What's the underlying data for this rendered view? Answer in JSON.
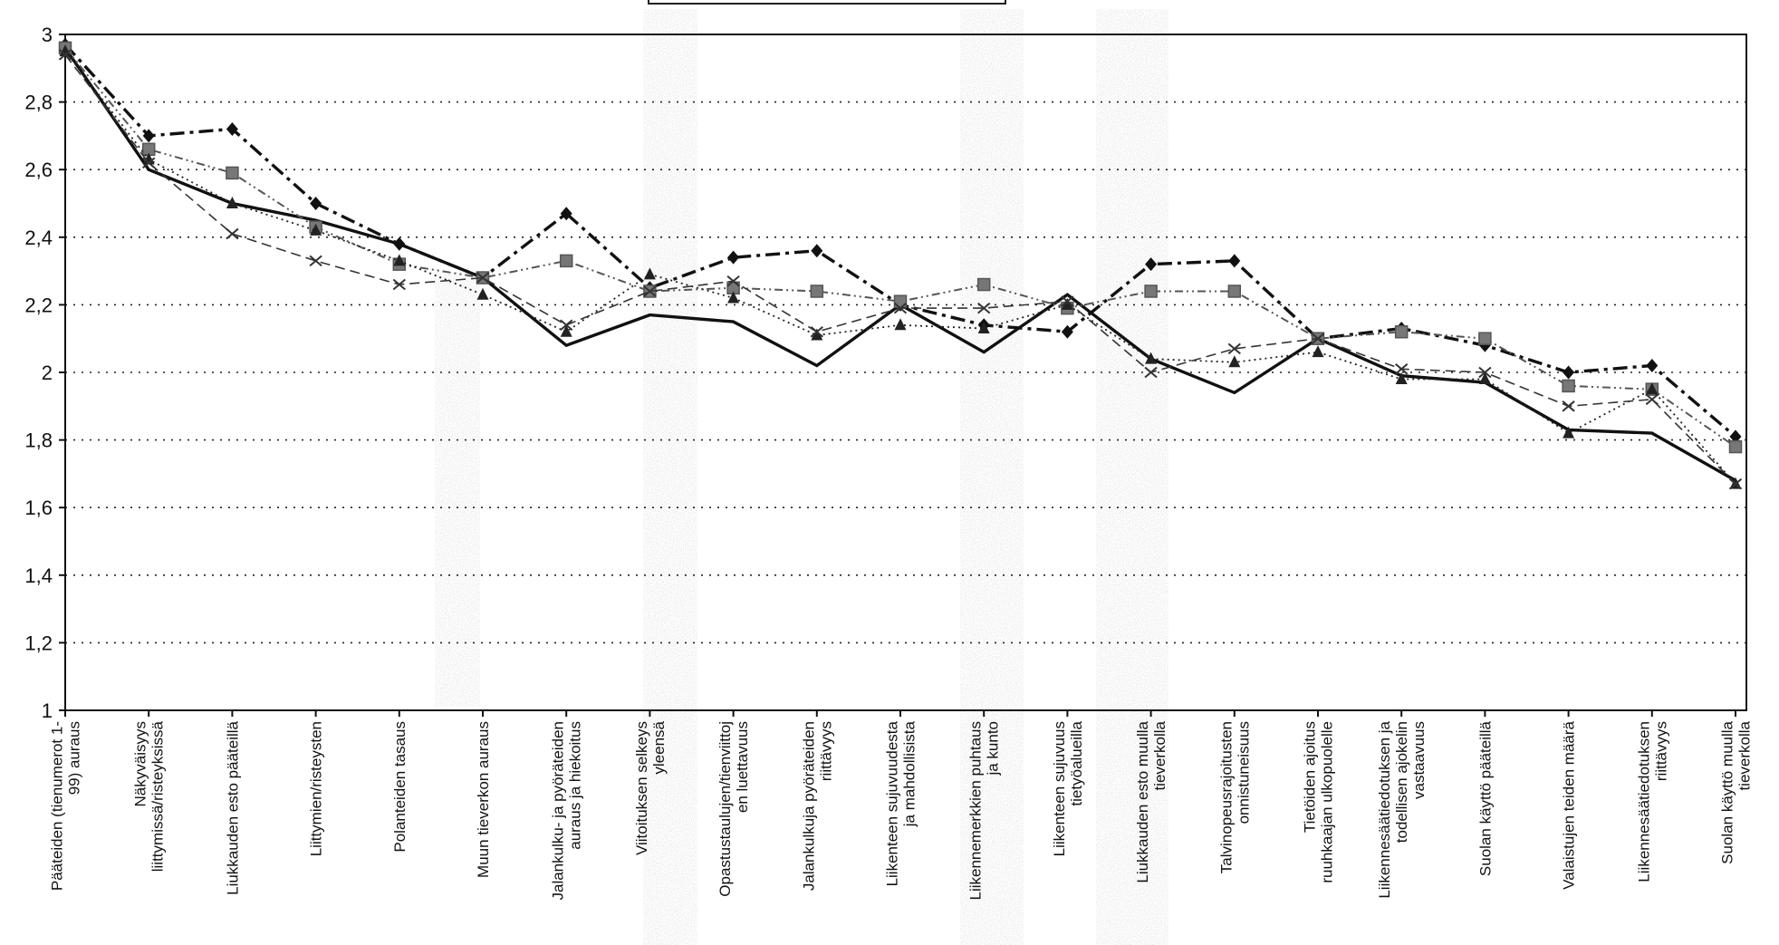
{
  "chart_data": {
    "type": "line",
    "title": "",
    "xlabel": "",
    "ylabel": "",
    "ylim": [
      1,
      3
    ],
    "yticks": [
      "1",
      "1,2",
      "1,4",
      "1,6",
      "1,8",
      "2",
      "2,2",
      "2,4",
      "2,6",
      "2,8",
      "3"
    ],
    "grid": "horizontal dotted",
    "categories": [
      [
        "Pääteiden (tienumerot 1-",
        "99) auraus"
      ],
      [
        "Näkyväisyys",
        "liittymissä/risteyksissä"
      ],
      [
        "Liukkauden esto pääteillä"
      ],
      [
        "Liittymien/risteysten"
      ],
      [
        "Polanteiden tasaus"
      ],
      [
        "Muun tieverkon auraus"
      ],
      [
        "Jalankulku- ja pyöräteiden",
        "auraus ja hiekoitus"
      ],
      [
        "Viitoituksen selkeys",
        "yleensä"
      ],
      [
        "Opastustaulujen/tienviittoj",
        "en luettavuus"
      ],
      [
        "Jalankulkuja pyöräteiden",
        "riittävyys"
      ],
      [
        "Liikenteen sujuvuudesta",
        "ja mahdollisista"
      ],
      [
        "Liikennemerkkien puhtaus",
        "ja kunto"
      ],
      [
        "Liikenteen sujuvuus",
        "tietyöalueilla"
      ],
      [
        "Liukkauden esto muulla",
        "tieverkolla"
      ],
      [
        "Talvinopeusrajoitusten",
        "onnistuneisuus"
      ],
      [
        "Tietöiden ajoitus",
        "ruuhkaajan ulkopuolelle"
      ],
      [
        "Liikennesäätiedotuksen ja",
        "todellisen ajokelin",
        "vastaavuus"
      ],
      [
        "Suolan käyttö pääteillä"
      ],
      [
        "Valaistujen teiden määrä"
      ],
      [
        "Liikennesäätiedotuksen",
        "riittävyys"
      ],
      [
        "Suolan käyttö muulla",
        "tieverkolla"
      ]
    ],
    "series": [
      {
        "marker": "none",
        "style": "solid-thick",
        "color": "#111111",
        "values": [
          2.96,
          2.6,
          2.5,
          2.45,
          2.38,
          2.28,
          2.08,
          2.17,
          2.15,
          2.02,
          2.2,
          2.06,
          2.23,
          2.04,
          1.94,
          2.1,
          1.99,
          1.97,
          1.83,
          1.82,
          1.68
        ]
      },
      {
        "marker": "diamond",
        "style": "dash-dot-thick",
        "color": "#111111",
        "values": [
          2.97,
          2.7,
          2.72,
          2.5,
          2.38,
          2.28,
          2.47,
          2.25,
          2.34,
          2.36,
          2.2,
          2.14,
          2.12,
          2.32,
          2.33,
          2.1,
          2.13,
          2.08,
          2.0,
          2.02,
          1.81
        ]
      },
      {
        "marker": "square",
        "style": "dash-dot-dot",
        "color": "#555555",
        "values": [
          2.96,
          2.66,
          2.59,
          2.43,
          2.32,
          2.28,
          2.33,
          2.24,
          2.25,
          2.24,
          2.21,
          2.26,
          2.19,
          2.24,
          2.24,
          2.1,
          2.12,
          2.1,
          1.96,
          1.95,
          1.78
        ]
      },
      {
        "marker": "triangle",
        "style": "dotted",
        "color": "#222222",
        "values": [
          2.95,
          2.63,
          2.5,
          2.42,
          2.33,
          2.23,
          2.12,
          2.29,
          2.22,
          2.11,
          2.14,
          2.13,
          2.2,
          2.04,
          2.03,
          2.06,
          1.98,
          1.98,
          1.82,
          1.95,
          1.67
        ]
      },
      {
        "marker": "x",
        "style": "dashed",
        "color": "#333333",
        "values": [
          2.94,
          2.62,
          2.41,
          2.33,
          2.26,
          2.28,
          2.14,
          2.24,
          2.27,
          2.12,
          2.19,
          2.19,
          2.21,
          2.0,
          2.07,
          2.1,
          2.01,
          2.0,
          1.9,
          1.92,
          1.67
        ]
      }
    ]
  }
}
